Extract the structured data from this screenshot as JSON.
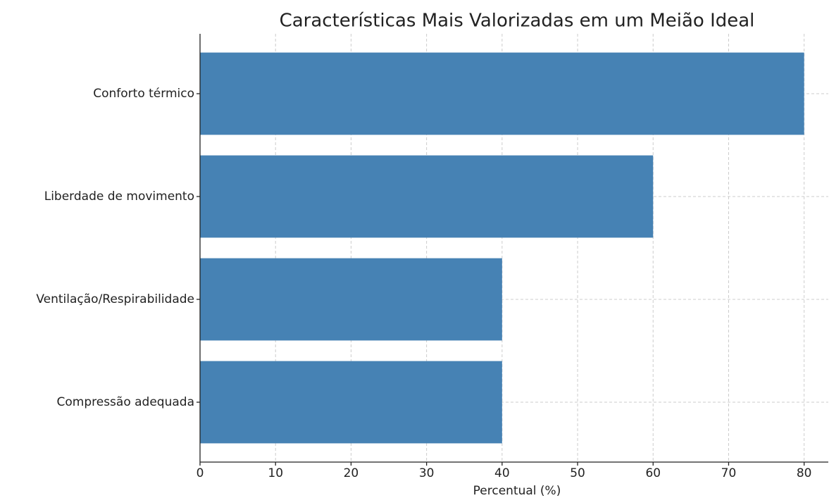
{
  "chart_data": {
    "type": "barh",
    "title": "Características Mais Valorizadas em um Meião Ideal",
    "xlabel": "Percentual (%)",
    "categories": [
      "Conforto térmico",
      "Liberdade de movimento",
      "Ventilação/Respirabilidade",
      "Compressão adequada"
    ],
    "values": [
      80,
      60,
      40,
      40
    ],
    "color": "#4682b4",
    "xlim": [
      0,
      83.2
    ],
    "xticks": [
      0,
      10,
      20,
      30,
      40,
      50,
      60,
      70,
      80
    ],
    "grid": true
  }
}
